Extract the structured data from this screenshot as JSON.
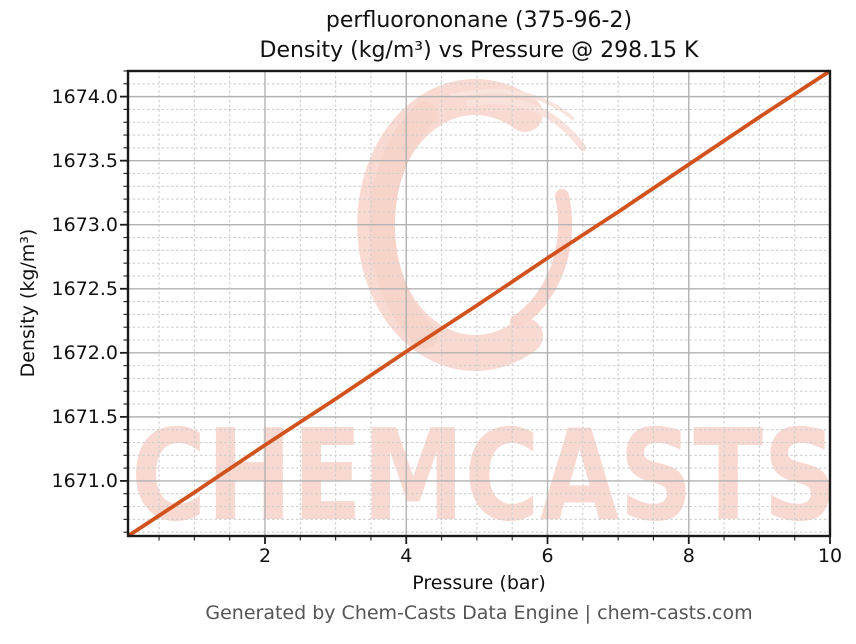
{
  "title": {
    "line1": "perfluorononane (375-96-2)",
    "line2": "Density (kg/m³) vs Pressure @ 298.15 K"
  },
  "watermark": {
    "text": "CHEMCASTS",
    "logo": "brush-circle-logo",
    "color": "#f8d9d1"
  },
  "footer": {
    "text": "Generated by Chem-Casts Data Engine | chem-casts.com"
  },
  "colors": {
    "series_line": "#d2521e",
    "major_grid": "#b2b2b2",
    "minor_grid": "#cdcdcd",
    "frame": "#1a1a1a",
    "title_text": "#111111",
    "footer_text": "#555555",
    "watermark": "#f8d9d1"
  },
  "chart_data": {
    "type": "line",
    "title": "perfluorononane (375-96-2)\nDensity (kg/m³) vs Pressure @ 298.15 K",
    "xlabel": "Pressure (bar)",
    "ylabel": "Density (kg/m³)",
    "xlim": [
      0.06,
      10
    ],
    "ylim": [
      1670.57,
      1674.2
    ],
    "x_ticks": [
      2,
      4,
      6,
      8,
      10
    ],
    "x_tick_labels": [
      "2",
      "4",
      "6",
      "8",
      "10"
    ],
    "y_ticks": [
      1671.0,
      1671.5,
      1672.0,
      1672.5,
      1673.0,
      1673.5,
      1674.0
    ],
    "y_tick_labels": [
      "1671.0",
      "1671.5",
      "1672.0",
      "1672.5",
      "1673.0",
      "1673.5",
      "1674.0"
    ],
    "x_minor_step": 0.5,
    "y_minor_step": 0.1,
    "grid": true,
    "legend": false,
    "series": [
      {
        "name": "Density (kg/m³) @ 298.15 K",
        "color": "#d2521e",
        "x": [
          0.06,
          1,
          2,
          3,
          4,
          5,
          6,
          7,
          8,
          9,
          10
        ],
        "y": [
          1670.57,
          1670.91,
          1671.28,
          1671.64,
          1672.01,
          1672.37,
          1672.74,
          1673.1,
          1673.47,
          1673.84,
          1674.2
        ]
      }
    ]
  }
}
